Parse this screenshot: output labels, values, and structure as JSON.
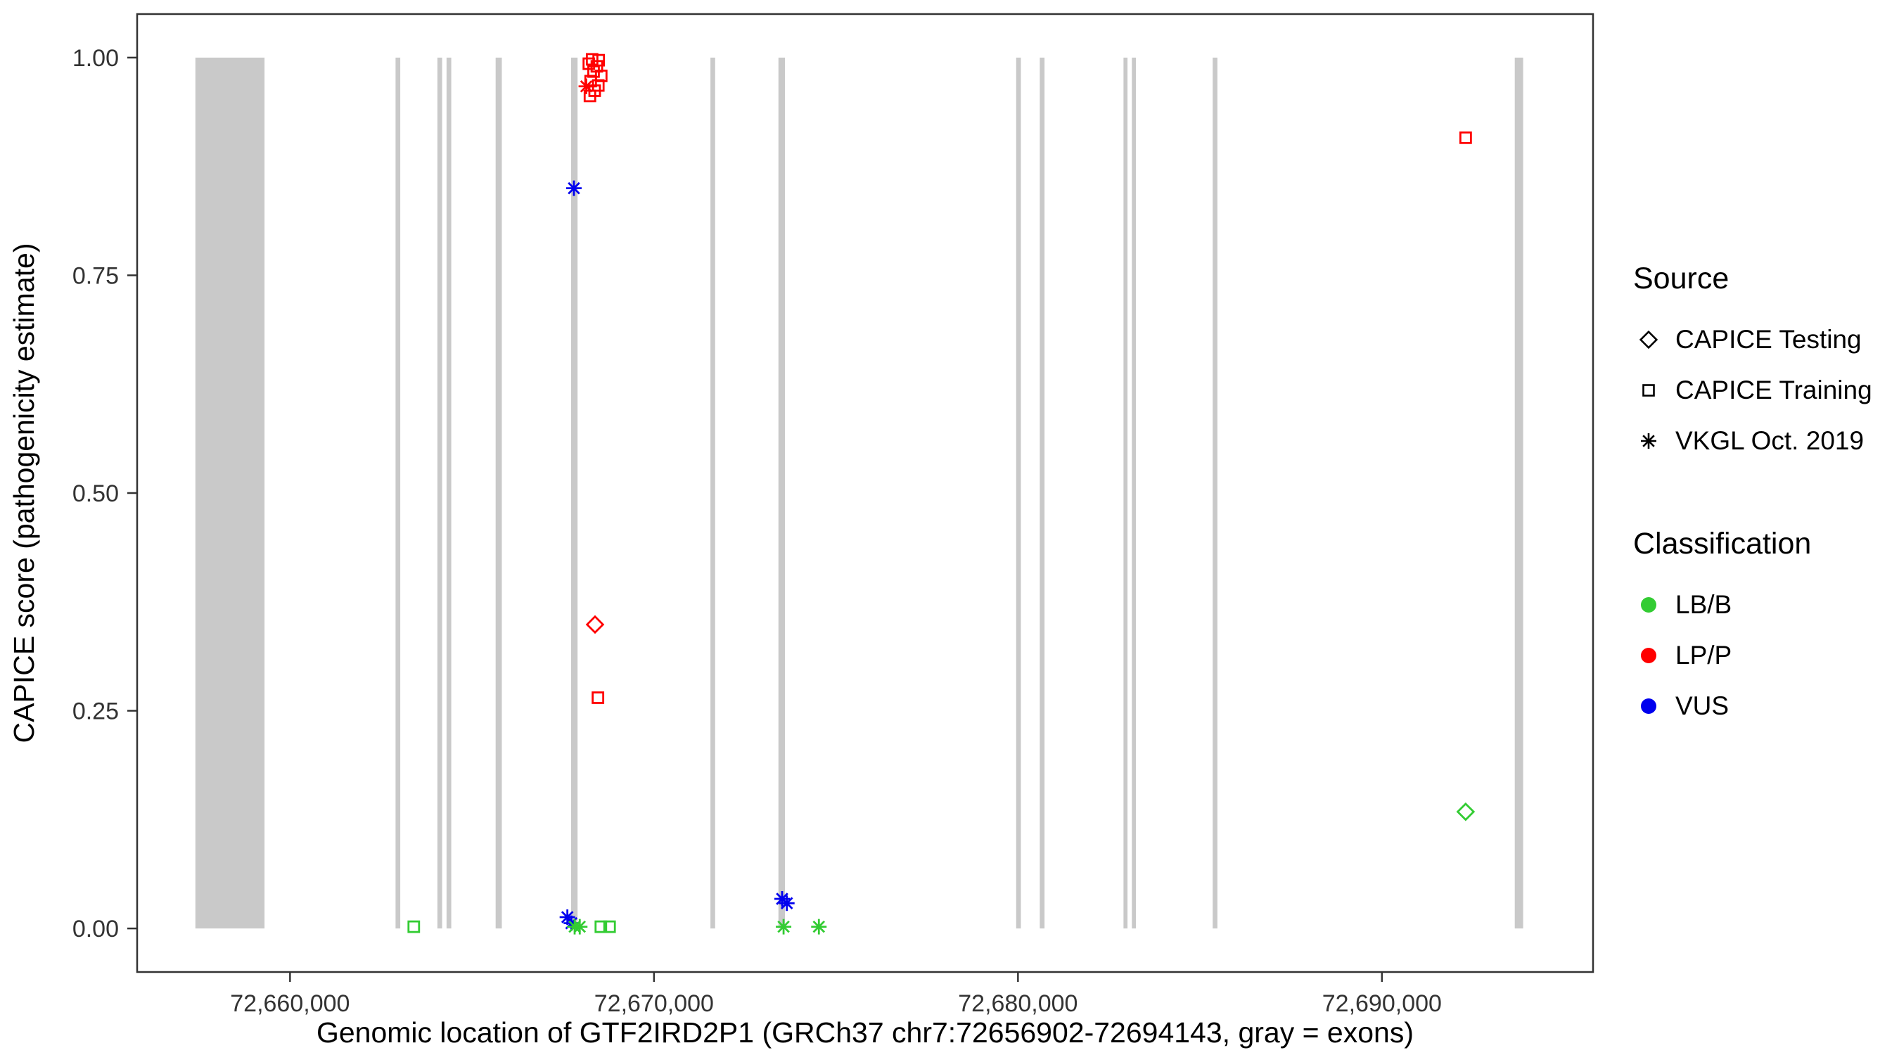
{
  "chart_data": {
    "type": "scatter",
    "title": "",
    "xlabel": "Genomic location of GTF2IRD2P1 (GRCh37 chr7:72656902-72694143, gray = exons)",
    "ylabel": "CAPICE score (pathogenicity estimate)",
    "xlim": [
      72655800,
      72695800
    ],
    "ylim": [
      -0.05,
      1.05
    ],
    "grid": "off",
    "x_ticks": [
      {
        "value": 72660000,
        "label": "72,660,000"
      },
      {
        "value": 72670000,
        "label": "72,670,000"
      },
      {
        "value": 72680000,
        "label": "72,680,000"
      },
      {
        "value": 72690000,
        "label": "72,690,000"
      }
    ],
    "y_ticks": [
      {
        "value": 1.0,
        "label": "1.00"
      },
      {
        "value": 0.75,
        "label": "0.75"
      },
      {
        "value": 0.5,
        "label": "0.50"
      },
      {
        "value": 0.25,
        "label": "0.25"
      },
      {
        "value": 0.0,
        "label": "0.00"
      }
    ],
    "exon_color": "#c9c9c9",
    "exons": [
      {
        "start": 72657400,
        "end": 72659300
      },
      {
        "start": 72662900,
        "end": 72663030
      },
      {
        "start": 72664050,
        "end": 72664180
      },
      {
        "start": 72664300,
        "end": 72664430
      },
      {
        "start": 72665650,
        "end": 72665820
      },
      {
        "start": 72667720,
        "end": 72667900
      },
      {
        "start": 72671550,
        "end": 72671680
      },
      {
        "start": 72673420,
        "end": 72673600
      },
      {
        "start": 72679950,
        "end": 72680080
      },
      {
        "start": 72680600,
        "end": 72680730
      },
      {
        "start": 72682900,
        "end": 72683010
      },
      {
        "start": 72683130,
        "end": 72683240
      },
      {
        "start": 72685350,
        "end": 72685480
      },
      {
        "start": 72693650,
        "end": 72693880
      }
    ],
    "colors": {
      "LB/B": "#33cc33",
      "LP/P": "#ff0000",
      "VUS": "#0000ee"
    },
    "points": [
      {
        "x": 72668300,
        "y": 0.998,
        "shape": "square",
        "cls": "LP/P"
      },
      {
        "x": 72668480,
        "y": 0.997,
        "shape": "square",
        "cls": "LP/P"
      },
      {
        "x": 72668210,
        "y": 0.993,
        "shape": "square",
        "cls": "LP/P"
      },
      {
        "x": 72668430,
        "y": 0.99,
        "shape": "square",
        "cls": "LP/P"
      },
      {
        "x": 72668340,
        "y": 0.984,
        "shape": "square",
        "cls": "LP/P"
      },
      {
        "x": 72668550,
        "y": 0.979,
        "shape": "square",
        "cls": "LP/P"
      },
      {
        "x": 72668260,
        "y": 0.973,
        "shape": "square",
        "cls": "LP/P"
      },
      {
        "x": 72668470,
        "y": 0.968,
        "shape": "square",
        "cls": "LP/P"
      },
      {
        "x": 72668370,
        "y": 0.962,
        "shape": "square",
        "cls": "LP/P"
      },
      {
        "x": 72668240,
        "y": 0.956,
        "shape": "square",
        "cls": "LP/P"
      },
      {
        "x": 72668140,
        "y": 0.967,
        "shape": "asterisk",
        "cls": "LP/P"
      },
      {
        "x": 72667800,
        "y": 0.85,
        "shape": "asterisk",
        "cls": "VUS"
      },
      {
        "x": 72668380,
        "y": 0.349,
        "shape": "diamond",
        "cls": "LP/P"
      },
      {
        "x": 72668460,
        "y": 0.265,
        "shape": "square",
        "cls": "LP/P"
      },
      {
        "x": 72692300,
        "y": 0.908,
        "shape": "square",
        "cls": "LP/P"
      },
      {
        "x": 72692300,
        "y": 0.134,
        "shape": "diamond",
        "cls": "LB/B"
      },
      {
        "x": 72663400,
        "y": 0.002,
        "shape": "square",
        "cls": "LB/B"
      },
      {
        "x": 72667620,
        "y": 0.013,
        "shape": "asterisk",
        "cls": "VUS"
      },
      {
        "x": 72667730,
        "y": 0.006,
        "shape": "asterisk",
        "cls": "VUS"
      },
      {
        "x": 72667820,
        "y": 0.002,
        "shape": "asterisk",
        "cls": "LB/B"
      },
      {
        "x": 72667960,
        "y": 0.002,
        "shape": "asterisk",
        "cls": "LB/B"
      },
      {
        "x": 72668540,
        "y": 0.002,
        "shape": "square",
        "cls": "LB/B"
      },
      {
        "x": 72668780,
        "y": 0.002,
        "shape": "square",
        "cls": "LB/B"
      },
      {
        "x": 72673520,
        "y": 0.034,
        "shape": "asterisk",
        "cls": "VUS"
      },
      {
        "x": 72673650,
        "y": 0.029,
        "shape": "asterisk",
        "cls": "VUS"
      },
      {
        "x": 72673560,
        "y": 0.002,
        "shape": "asterisk",
        "cls": "LB/B"
      },
      {
        "x": 72674530,
        "y": 0.002,
        "shape": "asterisk",
        "cls": "LB/B"
      }
    ],
    "legend": {
      "source_title": "Source",
      "source_items": [
        {
          "label": "CAPICE Testing",
          "shape": "diamond"
        },
        {
          "label": "CAPICE Training",
          "shape": "square"
        },
        {
          "label": "VKGL Oct. 2019",
          "shape": "asterisk"
        }
      ],
      "class_title": "Classification",
      "class_items": [
        {
          "label": "LB/B",
          "color": "#33cc33"
        },
        {
          "label": "LP/P",
          "color": "#ff0000"
        },
        {
          "label": "VUS",
          "color": "#0000ee"
        }
      ]
    }
  }
}
